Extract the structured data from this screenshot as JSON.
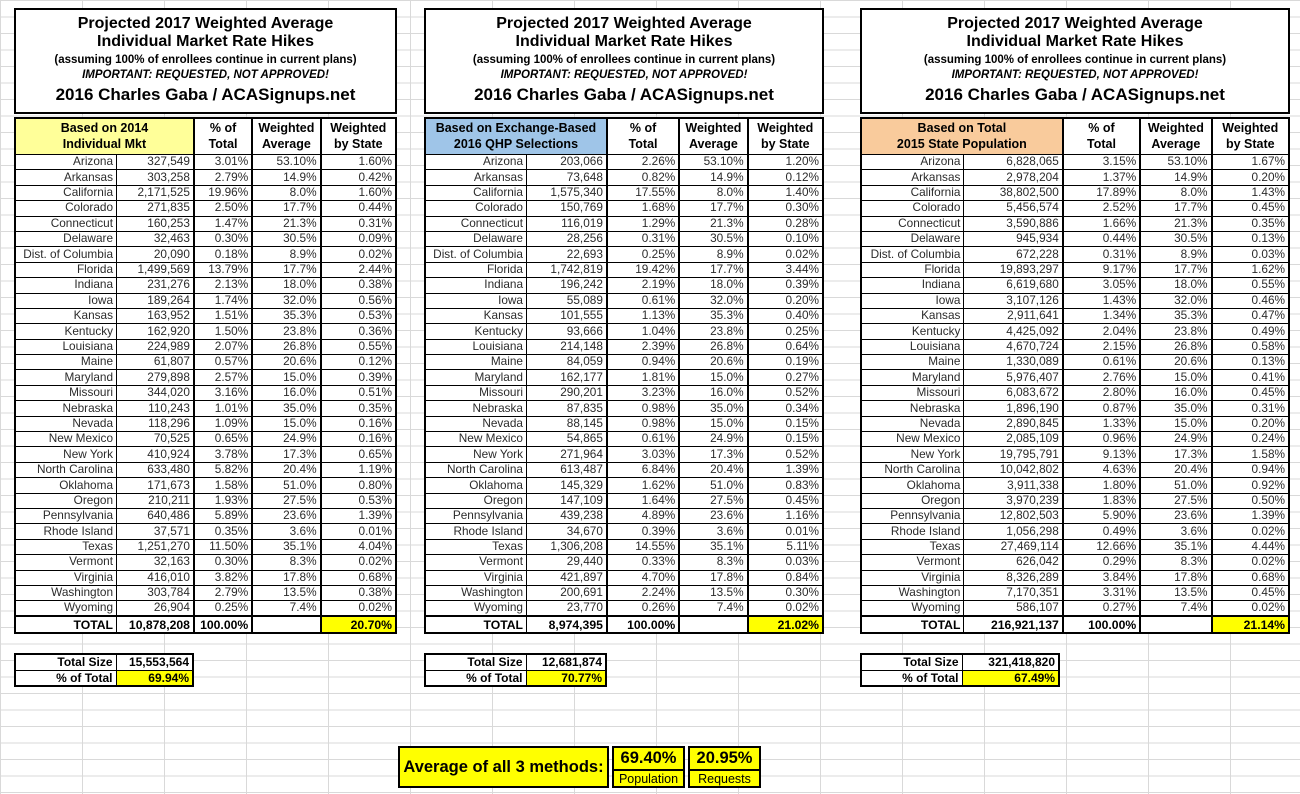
{
  "title_lines": [
    "Projected 2017 Weighted Average",
    "Individual Market Rate Hikes",
    "(assuming 100% of enrollees continue in current plans)",
    "IMPORTANT: REQUESTED, NOT APPROVED!",
    "2016 Charles Gaba / ACASignups.net"
  ],
  "col_headers": [
    [
      "% of",
      "Total"
    ],
    [
      "Weighted",
      "Average"
    ],
    [
      "Weighted",
      "by State"
    ]
  ],
  "footer_labels": {
    "total_size": "Total Size",
    "pct_of_total": "% of Total"
  },
  "colors": {
    "header_yellow": "#FFFF99",
    "header_blue": "#9FC5E8",
    "header_orange": "#F9CB9C",
    "highlight_yellow": "#FFFF00",
    "grid_line": "#D9D9D9",
    "border_black": "#000000"
  },
  "chart_data": [
    {
      "type": "table",
      "name": "based-on-2014-individual-market",
      "basis_lines": [
        "Based on 2014",
        "Individual Mkt"
      ],
      "header_fill": "#FFFF99",
      "rows": [
        [
          "Arizona",
          "327,549",
          "3.01%",
          "53.10%",
          "1.60%"
        ],
        [
          "Arkansas",
          "303,258",
          "2.79%",
          "14.9%",
          "0.42%"
        ],
        [
          "California",
          "2,171,525",
          "19.96%",
          "8.0%",
          "1.60%"
        ],
        [
          "Colorado",
          "271,835",
          "2.50%",
          "17.7%",
          "0.44%"
        ],
        [
          "Connecticut",
          "160,253",
          "1.47%",
          "21.3%",
          "0.31%"
        ],
        [
          "Delaware",
          "32,463",
          "0.30%",
          "30.5%",
          "0.09%"
        ],
        [
          "Dist. of Columbia",
          "20,090",
          "0.18%",
          "8.9%",
          "0.02%"
        ],
        [
          "Florida",
          "1,499,569",
          "13.79%",
          "17.7%",
          "2.44%"
        ],
        [
          "Indiana",
          "231,276",
          "2.13%",
          "18.0%",
          "0.38%"
        ],
        [
          "Iowa",
          "189,264",
          "1.74%",
          "32.0%",
          "0.56%"
        ],
        [
          "Kansas",
          "163,952",
          "1.51%",
          "35.3%",
          "0.53%"
        ],
        [
          "Kentucky",
          "162,920",
          "1.50%",
          "23.8%",
          "0.36%"
        ],
        [
          "Louisiana",
          "224,989",
          "2.07%",
          "26.8%",
          "0.55%"
        ],
        [
          "Maine",
          "61,807",
          "0.57%",
          "20.6%",
          "0.12%"
        ],
        [
          "Maryland",
          "279,898",
          "2.57%",
          "15.0%",
          "0.39%"
        ],
        [
          "Missouri",
          "344,020",
          "3.16%",
          "16.0%",
          "0.51%"
        ],
        [
          "Nebraska",
          "110,243",
          "1.01%",
          "35.0%",
          "0.35%"
        ],
        [
          "Nevada",
          "118,296",
          "1.09%",
          "15.0%",
          "0.16%"
        ],
        [
          "New Mexico",
          "70,525",
          "0.65%",
          "24.9%",
          "0.16%"
        ],
        [
          "New York",
          "410,924",
          "3.78%",
          "17.3%",
          "0.65%"
        ],
        [
          "North Carolina",
          "633,480",
          "5.82%",
          "20.4%",
          "1.19%"
        ],
        [
          "Oklahoma",
          "171,673",
          "1.58%",
          "51.0%",
          "0.80%"
        ],
        [
          "Oregon",
          "210,211",
          "1.93%",
          "27.5%",
          "0.53%"
        ],
        [
          "Pennsylvania",
          "640,486",
          "5.89%",
          "23.6%",
          "1.39%"
        ],
        [
          "Rhode Island",
          "37,571",
          "0.35%",
          "3.6%",
          "0.01%"
        ],
        [
          "Texas",
          "1,251,270",
          "11.50%",
          "35.1%",
          "4.04%"
        ],
        [
          "Vermont",
          "32,163",
          "0.30%",
          "8.3%",
          "0.02%"
        ],
        [
          "Virginia",
          "416,010",
          "3.82%",
          "17.8%",
          "0.68%"
        ],
        [
          "Washington",
          "303,784",
          "2.79%",
          "13.5%",
          "0.38%"
        ],
        [
          "Wyoming",
          "26,904",
          "0.25%",
          "7.4%",
          "0.02%"
        ]
      ],
      "total_row": [
        "TOTAL",
        "10,878,208",
        "100.00%",
        "",
        "20.70%"
      ],
      "footer": {
        "total_size": "15,553,564",
        "pct_of_total": "69.94%"
      }
    },
    {
      "type": "table",
      "name": "based-on-exchange-2016-qhp-selections",
      "basis_lines": [
        "Based on Exchange-Based",
        "2016 QHP Selections"
      ],
      "header_fill": "#9FC5E8",
      "rows": [
        [
          "Arizona",
          "203,066",
          "2.26%",
          "53.10%",
          "1.20%"
        ],
        [
          "Arkansas",
          "73,648",
          "0.82%",
          "14.9%",
          "0.12%"
        ],
        [
          "California",
          "1,575,340",
          "17.55%",
          "8.0%",
          "1.40%"
        ],
        [
          "Colorado",
          "150,769",
          "1.68%",
          "17.7%",
          "0.30%"
        ],
        [
          "Connecticut",
          "116,019",
          "1.29%",
          "21.3%",
          "0.28%"
        ],
        [
          "Delaware",
          "28,256",
          "0.31%",
          "30.5%",
          "0.10%"
        ],
        [
          "Dist. of Columbia",
          "22,693",
          "0.25%",
          "8.9%",
          "0.02%"
        ],
        [
          "Florida",
          "1,742,819",
          "19.42%",
          "17.7%",
          "3.44%"
        ],
        [
          "Indiana",
          "196,242",
          "2.19%",
          "18.0%",
          "0.39%"
        ],
        [
          "Iowa",
          "55,089",
          "0.61%",
          "32.0%",
          "0.20%"
        ],
        [
          "Kansas",
          "101,555",
          "1.13%",
          "35.3%",
          "0.40%"
        ],
        [
          "Kentucky",
          "93,666",
          "1.04%",
          "23.8%",
          "0.25%"
        ],
        [
          "Louisiana",
          "214,148",
          "2.39%",
          "26.8%",
          "0.64%"
        ],
        [
          "Maine",
          "84,059",
          "0.94%",
          "20.6%",
          "0.19%"
        ],
        [
          "Maryland",
          "162,177",
          "1.81%",
          "15.0%",
          "0.27%"
        ],
        [
          "Missouri",
          "290,201",
          "3.23%",
          "16.0%",
          "0.52%"
        ],
        [
          "Nebraska",
          "87,835",
          "0.98%",
          "35.0%",
          "0.34%"
        ],
        [
          "Nevada",
          "88,145",
          "0.98%",
          "15.0%",
          "0.15%"
        ],
        [
          "New Mexico",
          "54,865",
          "0.61%",
          "24.9%",
          "0.15%"
        ],
        [
          "New York",
          "271,964",
          "3.03%",
          "17.3%",
          "0.52%"
        ],
        [
          "North Carolina",
          "613,487",
          "6.84%",
          "20.4%",
          "1.39%"
        ],
        [
          "Oklahoma",
          "145,329",
          "1.62%",
          "51.0%",
          "0.83%"
        ],
        [
          "Oregon",
          "147,109",
          "1.64%",
          "27.5%",
          "0.45%"
        ],
        [
          "Pennsylvania",
          "439,238",
          "4.89%",
          "23.6%",
          "1.16%"
        ],
        [
          "Rhode Island",
          "34,670",
          "0.39%",
          "3.6%",
          "0.01%"
        ],
        [
          "Texas",
          "1,306,208",
          "14.55%",
          "35.1%",
          "5.11%"
        ],
        [
          "Vermont",
          "29,440",
          "0.33%",
          "8.3%",
          "0.03%"
        ],
        [
          "Virginia",
          "421,897",
          "4.70%",
          "17.8%",
          "0.84%"
        ],
        [
          "Washington",
          "200,691",
          "2.24%",
          "13.5%",
          "0.30%"
        ],
        [
          "Wyoming",
          "23,770",
          "0.26%",
          "7.4%",
          "0.02%"
        ]
      ],
      "total_row": [
        "TOTAL",
        "8,974,395",
        "100.00%",
        "",
        "21.02%"
      ],
      "footer": {
        "total_size": "12,681,874",
        "pct_of_total": "70.77%"
      }
    },
    {
      "type": "table",
      "name": "based-on-total-2015-state-population",
      "basis_lines": [
        "Based on Total",
        "2015 State Population"
      ],
      "header_fill": "#F9CB9C",
      "rows": [
        [
          "Arizona",
          "6,828,065",
          "3.15%",
          "53.10%",
          "1.67%"
        ],
        [
          "Arkansas",
          "2,978,204",
          "1.37%",
          "14.9%",
          "0.20%"
        ],
        [
          "California",
          "38,802,500",
          "17.89%",
          "8.0%",
          "1.43%"
        ],
        [
          "Colorado",
          "5,456,574",
          "2.52%",
          "17.7%",
          "0.45%"
        ],
        [
          "Connecticut",
          "3,590,886",
          "1.66%",
          "21.3%",
          "0.35%"
        ],
        [
          "Delaware",
          "945,934",
          "0.44%",
          "30.5%",
          "0.13%"
        ],
        [
          "Dist. of Columbia",
          "672,228",
          "0.31%",
          "8.9%",
          "0.03%"
        ],
        [
          "Florida",
          "19,893,297",
          "9.17%",
          "17.7%",
          "1.62%"
        ],
        [
          "Indiana",
          "6,619,680",
          "3.05%",
          "18.0%",
          "0.55%"
        ],
        [
          "Iowa",
          "3,107,126",
          "1.43%",
          "32.0%",
          "0.46%"
        ],
        [
          "Kansas",
          "2,911,641",
          "1.34%",
          "35.3%",
          "0.47%"
        ],
        [
          "Kentucky",
          "4,425,092",
          "2.04%",
          "23.8%",
          "0.49%"
        ],
        [
          "Louisiana",
          "4,670,724",
          "2.15%",
          "26.8%",
          "0.58%"
        ],
        [
          "Maine",
          "1,330,089",
          "0.61%",
          "20.6%",
          "0.13%"
        ],
        [
          "Maryland",
          "5,976,407",
          "2.76%",
          "15.0%",
          "0.41%"
        ],
        [
          "Missouri",
          "6,083,672",
          "2.80%",
          "16.0%",
          "0.45%"
        ],
        [
          "Nebraska",
          "1,896,190",
          "0.87%",
          "35.0%",
          "0.31%"
        ],
        [
          "Nevada",
          "2,890,845",
          "1.33%",
          "15.0%",
          "0.20%"
        ],
        [
          "New Mexico",
          "2,085,109",
          "0.96%",
          "24.9%",
          "0.24%"
        ],
        [
          "New York",
          "19,795,791",
          "9.13%",
          "17.3%",
          "1.58%"
        ],
        [
          "North Carolina",
          "10,042,802",
          "4.63%",
          "20.4%",
          "0.94%"
        ],
        [
          "Oklahoma",
          "3,911,338",
          "1.80%",
          "51.0%",
          "0.92%"
        ],
        [
          "Oregon",
          "3,970,239",
          "1.83%",
          "27.5%",
          "0.50%"
        ],
        [
          "Pennsylvania",
          "12,802,503",
          "5.90%",
          "23.6%",
          "1.39%"
        ],
        [
          "Rhode Island",
          "1,056,298",
          "0.49%",
          "3.6%",
          "0.02%"
        ],
        [
          "Texas",
          "27,469,114",
          "12.66%",
          "35.1%",
          "4.44%"
        ],
        [
          "Vermont",
          "626,042",
          "0.29%",
          "8.3%",
          "0.02%"
        ],
        [
          "Virginia",
          "8,326,289",
          "3.84%",
          "17.8%",
          "0.68%"
        ],
        [
          "Washington",
          "7,170,351",
          "3.31%",
          "13.5%",
          "0.45%"
        ],
        [
          "Wyoming",
          "586,107",
          "0.27%",
          "7.4%",
          "0.02%"
        ]
      ],
      "total_row": [
        "TOTAL",
        "216,921,137",
        "100.00%",
        "",
        "21.14%"
      ],
      "footer": {
        "total_size": "321,418,820",
        "pct_of_total": "67.49%"
      }
    }
  ],
  "summary": {
    "label": "Average of all 3 methods:",
    "cells": [
      {
        "value": "69.40%",
        "label": "Population"
      },
      {
        "value": "20.95%",
        "label": "Requests"
      }
    ]
  }
}
